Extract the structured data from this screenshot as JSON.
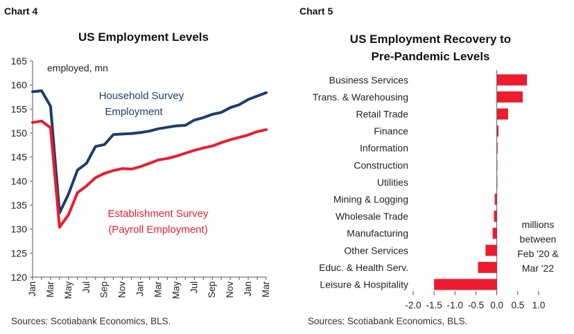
{
  "left": {
    "chart_label": "Chart 4",
    "source": "Sources: Scotiabank Economics, BLS."
  },
  "right": {
    "chart_label": "Chart 5",
    "source": "Sources: Scotiabank Economics, BLS."
  },
  "chart_data": [
    {
      "type": "line",
      "title": "US Employment Levels",
      "unit_label": "employed, mn",
      "ylim": [
        120,
        165
      ],
      "yticks": [
        120,
        125,
        130,
        135,
        140,
        145,
        150,
        155,
        160,
        165
      ],
      "xticklabels": [
        "Jan",
        "Mar",
        "May",
        "Jul",
        "Sep",
        "Nov",
        "Jan",
        "Mar",
        "May",
        "Jul",
        "Sep",
        "Nov",
        "Jan",
        "Mar"
      ],
      "x": [
        "Jan-20",
        "Feb-20",
        "Mar-20",
        "Apr-20",
        "May-20",
        "Jun-20",
        "Jul-20",
        "Aug-20",
        "Sep-20",
        "Oct-20",
        "Nov-20",
        "Dec-20",
        "Jan-21",
        "Feb-21",
        "Mar-21",
        "Apr-21",
        "May-21",
        "Jun-21",
        "Jul-21",
        "Aug-21",
        "Sep-21",
        "Oct-21",
        "Nov-21",
        "Dec-21",
        "Jan-22",
        "Feb-22",
        "Mar-22"
      ],
      "series": [
        {
          "name": "Household Survey Employment",
          "label_lines": [
            "Household Survey",
            "Employment"
          ],
          "color": "#1f3c6e",
          "values": [
            158.6,
            158.8,
            155.6,
            133.4,
            137.3,
            142.3,
            143.7,
            147.2,
            147.6,
            149.7,
            149.8,
            149.9,
            150.1,
            150.4,
            150.9,
            151.2,
            151.5,
            151.6,
            152.7,
            153.2,
            153.9,
            154.3,
            155.3,
            155.9,
            157.0,
            157.7,
            158.4
          ]
        },
        {
          "name": "Establishment Survey (Payroll Employment)",
          "label_lines": [
            "Establishment Survey",
            "(Payroll Employment)"
          ],
          "color": "#ec1c2e",
          "values": [
            152.2,
            152.5,
            151.1,
            130.4,
            133.0,
            137.6,
            139.0,
            140.7,
            141.6,
            142.2,
            142.6,
            142.5,
            143.0,
            143.7,
            144.4,
            144.7,
            145.2,
            145.8,
            146.4,
            146.9,
            147.3,
            148.0,
            148.6,
            149.1,
            149.6,
            150.3,
            150.7
          ]
        }
      ]
    },
    {
      "type": "bar",
      "orientation": "horizontal",
      "title": "US Employment Recovery to Pre-Pandemic Levels",
      "title_lines": [
        "US Employment Recovery to",
        "Pre-Pandemic Levels"
      ],
      "categories": [
        "Business Services",
        "Trans. & Warehousing",
        "Retail Trade",
        "Finance",
        "Information",
        "Construction",
        "Utilities",
        "Mining & Logging",
        "Wholesale Trade",
        "Manufacturing",
        "Other Services",
        "Educ. & Health Serv.",
        "Leisure & Hospitality"
      ],
      "values": [
        0.72,
        0.62,
        0.27,
        0.04,
        0.02,
        0.0,
        0.0,
        -0.05,
        -0.07,
        -0.1,
        -0.27,
        -0.45,
        -1.5
      ],
      "color": "#ec1c2e",
      "xlim": [
        -2.0,
        1.0
      ],
      "xticks": [
        -2.0,
        -1.5,
        -1.0,
        -0.5,
        0.0,
        0.5,
        1.0
      ],
      "xticklabels": [
        "-2.0",
        "-1.5",
        "-1.0",
        "-0.5",
        "0.0",
        "0.5",
        "1.0"
      ],
      "annotation_lines": [
        "millions",
        "between",
        "Feb '20 &",
        "Mar '22"
      ]
    }
  ]
}
